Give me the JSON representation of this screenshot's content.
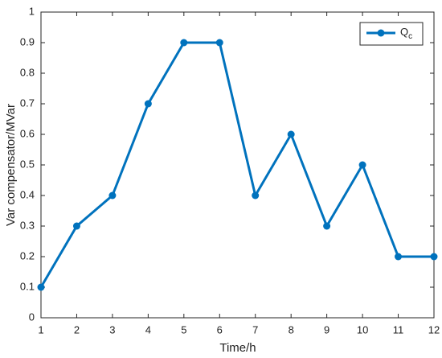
{
  "chart_data": {
    "type": "line",
    "xlabel": "Time/h",
    "ylabel": "Var compensator/MVar",
    "x": [
      1,
      2,
      3,
      4,
      5,
      6,
      7,
      8,
      9,
      10,
      11,
      12
    ],
    "series": [
      {
        "name": "Qc",
        "color": "#0072bd",
        "values": [
          0.1,
          0.3,
          0.4,
          0.7,
          0.9,
          0.9,
          0.4,
          0.6,
          0.3,
          0.5,
          0.2,
          0.2
        ]
      }
    ],
    "xlim": [
      1,
      12
    ],
    "xticks": [
      1,
      2,
      3,
      4,
      5,
      6,
      7,
      8,
      9,
      10,
      11,
      12
    ],
    "ylim": [
      0,
      1
    ],
    "yticks": [
      0,
      0.1,
      0.2,
      0.3,
      0.4,
      0.5,
      0.6,
      0.7,
      0.8,
      0.9,
      1
    ],
    "grid": false,
    "legend": "northeast"
  }
}
